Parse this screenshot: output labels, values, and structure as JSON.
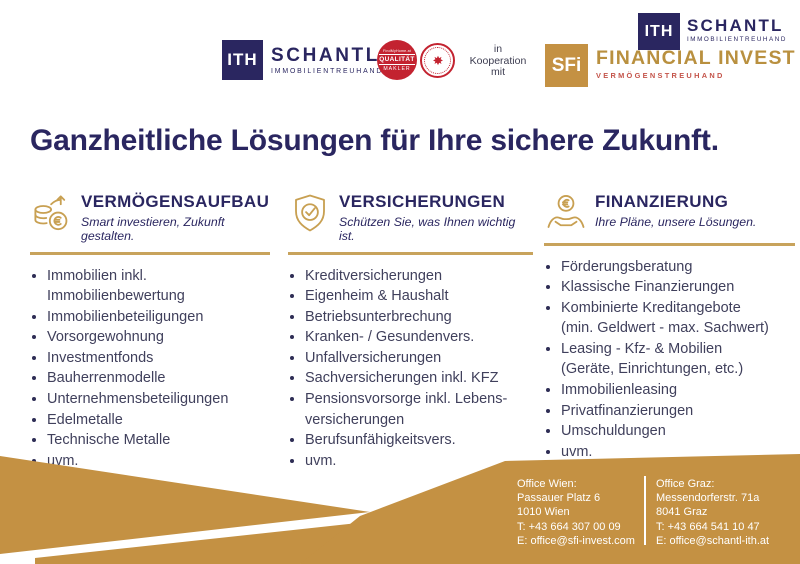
{
  "colors": {
    "navy": "#2a2660",
    "gold": "#c49143",
    "gold-rule": "#c8a35c",
    "gold-icon": "#c8a052",
    "red": "#c32330",
    "text": "#40405c"
  },
  "header": {
    "main_logo": {
      "mark": "ITH",
      "name": "SCHANTL",
      "tagline": "IMMOBILIENTREUHAND"
    },
    "quality_seal": {
      "top": "FindMyHome.at",
      "line1": "QUALITÄT",
      "line2": "MAKLER"
    },
    "cooperation": "in\nKooperation\nmit",
    "sfi_logo": {
      "mark": "SFi",
      "name": "FINANCIAL INVEST",
      "tagline": "VERMÖGENSTREUHAND"
    },
    "corner_logo": {
      "mark": "ITH",
      "name": "SCHANTL",
      "tagline": "IMMOBILIENTREUHAND"
    }
  },
  "title": "Ganzheitliche Lösungen für Ihre sichere Zukunft.",
  "columns": [
    {
      "icon": "coins-growth-icon",
      "title": "VERMÖGENSAUFBAU",
      "subtitle": "Smart investieren, Zukunft gestalten.",
      "items": [
        "Immobilien inkl.\nImmobilienbewertung",
        "Immobilienbeteiligungen",
        "Vorsorgewohnung",
        "Investmentfonds",
        "Bauherrenmodelle",
        "Unternehmensbeteiligungen",
        "Edelmetalle",
        "Technische Metalle",
        "uvm."
      ]
    },
    {
      "icon": "shield-check-icon",
      "title": "VERSICHERUNGEN",
      "subtitle": "Schützen Sie, was Ihnen wichtig ist.",
      "items": [
        "Kreditversicherungen",
        "Eigenheim & Haushalt",
        "Betriebsunterbrechung",
        "Kranken- / Gesundenvers.",
        "Unfallversicherungen",
        "Sachversicherungen inkl. KFZ",
        "Pensionsvorsorge inkl. Lebens-\nversicherungen",
        "Berufsunfähigkeitsvers.",
        "uvm."
      ]
    },
    {
      "icon": "hands-euro-icon",
      "title": "FINANZIERUNG",
      "subtitle": "Ihre Pläne, unsere Lösungen.",
      "items": [
        "Förderungsberatung",
        "Klassische Finanzierungen",
        "Kombinierte Kreditangebote\n(min. Geldwert - max. Sachwert)",
        "Leasing - Kfz- & Mobilien\n(Geräte, Einrichtungen, etc.)",
        "Immobilienleasing",
        "Privatfinanzierungen",
        "Umschuldungen",
        "uvm."
      ]
    }
  ],
  "footer": {
    "offices": [
      {
        "name": "Office Wien:",
        "lines": [
          "Passauer Platz 6",
          "1010 Wien",
          "T: +43 664 307 00 09",
          "E: office@sfi-invest.com"
        ]
      },
      {
        "name": "Office Graz:",
        "lines": [
          "Messendorferstr. 71a",
          "8041 Graz",
          "T: +43 664 541 10 47",
          "E: office@schantl-ith.at"
        ]
      }
    ]
  }
}
